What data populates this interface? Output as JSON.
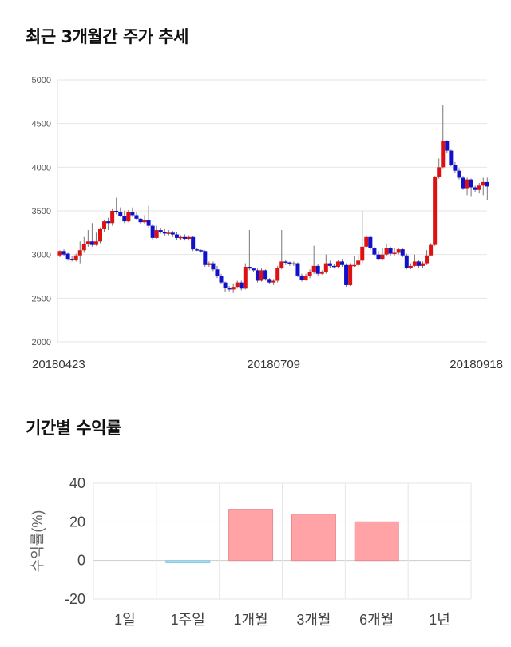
{
  "titles": {
    "price_trend": "최근 3개월간 주가 추세",
    "period_returns": "기간별 수익률"
  },
  "colors": {
    "up": "#dd1111",
    "down": "#1111cc",
    "return_positive": "#ffa3a6",
    "return_negative": "#a9dcf0",
    "grid": "#e6e6e6"
  },
  "chart_data": [
    {
      "type": "candlestick",
      "title": "최근 3개월간 주가 추세",
      "ylim": [
        2000,
        5000
      ],
      "yticks": [
        2000,
        2500,
        3000,
        3500,
        4000,
        4500,
        5000
      ],
      "xticks": [
        {
          "index": 0,
          "label": "20180423"
        },
        {
          "index": 53,
          "label": "20180709"
        },
        {
          "index": 104,
          "label": "20180918"
        }
      ],
      "candles": [
        [
          2990,
          3040,
          2970,
          3050
        ],
        [
          3040,
          3000,
          2980,
          3060
        ],
        [
          3010,
          2950,
          2930,
          3020
        ],
        [
          2950,
          2940,
          2920,
          2980
        ],
        [
          2940,
          2990,
          2920,
          3010
        ],
        [
          2990,
          3050,
          2900,
          3150
        ],
        [
          3050,
          3120,
          3020,
          3200
        ],
        [
          3120,
          3150,
          3090,
          3280
        ],
        [
          3150,
          3110,
          3090,
          3360
        ],
        [
          3110,
          3150,
          3100,
          3250
        ],
        [
          3150,
          3290,
          3130,
          3310
        ],
        [
          3290,
          3380,
          3260,
          3400
        ],
        [
          3380,
          3360,
          3280,
          3420
        ],
        [
          3360,
          3500,
          3330,
          3520
        ],
        [
          3500,
          3490,
          3460,
          3650
        ],
        [
          3490,
          3440,
          3430,
          3540
        ],
        [
          3440,
          3380,
          3360,
          3500
        ],
        [
          3380,
          3490,
          3370,
          3510
        ],
        [
          3490,
          3450,
          3430,
          3540
        ],
        [
          3450,
          3410,
          3390,
          3480
        ],
        [
          3410,
          3370,
          3350,
          3420
        ],
        [
          3370,
          3390,
          3350,
          3450
        ],
        [
          3390,
          3330,
          3300,
          3560
        ],
        [
          3330,
          3190,
          3170,
          3350
        ],
        [
          3190,
          3280,
          3180,
          3330
        ],
        [
          3280,
          3260,
          3240,
          3300
        ],
        [
          3260,
          3240,
          3210,
          3290
        ],
        [
          3240,
          3250,
          3220,
          3280
        ],
        [
          3250,
          3230,
          3200,
          3270
        ],
        [
          3230,
          3190,
          3170,
          3260
        ],
        [
          3190,
          3200,
          3170,
          3220
        ],
        [
          3200,
          3180,
          3160,
          3230
        ],
        [
          3180,
          3200,
          3160,
          3220
        ],
        [
          3200,
          3060,
          3040,
          3210
        ],
        [
          3060,
          3050,
          3040,
          3080
        ],
        [
          3050,
          3040,
          3020,
          3060
        ],
        [
          3040,
          2880,
          2860,
          3050
        ],
        [
          2880,
          2900,
          2860,
          2920
        ],
        [
          2900,
          2830,
          2810,
          2920
        ],
        [
          2830,
          2750,
          2730,
          2870
        ],
        [
          2750,
          2680,
          2660,
          2780
        ],
        [
          2680,
          2620,
          2570,
          2690
        ],
        [
          2620,
          2600,
          2580,
          2640
        ],
        [
          2600,
          2630,
          2560,
          2670
        ],
        [
          2630,
          2680,
          2610,
          2700
        ],
        [
          2680,
          2610,
          2590,
          2700
        ],
        [
          2610,
          2860,
          2600,
          2900
        ],
        [
          2860,
          2840,
          2820,
          3280
        ],
        [
          2840,
          2820,
          2800,
          2850
        ],
        [
          2820,
          2700,
          2680,
          2840
        ],
        [
          2700,
          2820,
          2690,
          2840
        ],
        [
          2820,
          2720,
          2700,
          2830
        ],
        [
          2720,
          2680,
          2660,
          2730
        ],
        [
          2680,
          2700,
          2650,
          2720
        ],
        [
          2700,
          2850,
          2680,
          2870
        ],
        [
          2850,
          2920,
          2830,
          3280
        ],
        [
          2920,
          2910,
          2880,
          2940
        ],
        [
          2910,
          2890,
          2870,
          2920
        ],
        [
          2890,
          2900,
          2870,
          2920
        ],
        [
          2900,
          2760,
          2740,
          2910
        ],
        [
          2760,
          2710,
          2690,
          2780
        ],
        [
          2710,
          2750,
          2700,
          2780
        ],
        [
          2750,
          2800,
          2730,
          2830
        ],
        [
          2800,
          2870,
          2780,
          3100
        ],
        [
          2870,
          2780,
          2760,
          2890
        ],
        [
          2780,
          2800,
          2770,
          2820
        ],
        [
          2800,
          2900,
          2780,
          3000
        ],
        [
          2900,
          2870,
          2850,
          2930
        ],
        [
          2870,
          2860,
          2840,
          2890
        ],
        [
          2860,
          2920,
          2840,
          2940
        ],
        [
          2920,
          2880,
          2860,
          2950
        ],
        [
          2880,
          2650,
          2630,
          2900
        ],
        [
          2650,
          2880,
          2640,
          2900
        ],
        [
          2880,
          2880,
          2860,
          2980
        ],
        [
          2880,
          2930,
          2860,
          3000
        ],
        [
          2930,
          3090,
          2900,
          3500
        ],
        [
          3090,
          3200,
          3080,
          3220
        ],
        [
          3200,
          3070,
          3050,
          3220
        ],
        [
          3070,
          3000,
          2980,
          3090
        ],
        [
          3000,
          2950,
          2930,
          3040
        ],
        [
          2950,
          3000,
          2930,
          3080
        ],
        [
          3000,
          3070,
          2980,
          3120
        ],
        [
          3070,
          3010,
          2990,
          3090
        ],
        [
          3010,
          3020,
          2990,
          3070
        ],
        [
          3020,
          3060,
          3000,
          3080
        ],
        [
          3060,
          2990,
          2970,
          3080
        ],
        [
          2990,
          2850,
          2830,
          3010
        ],
        [
          2850,
          2870,
          2830,
          2900
        ],
        [
          2870,
          2920,
          2860,
          3000
        ],
        [
          2920,
          2870,
          2850,
          2940
        ],
        [
          2870,
          2900,
          2850,
          2920
        ],
        [
          2900,
          2990,
          2880,
          3050
        ],
        [
          2990,
          3110,
          2980,
          3130
        ],
        [
          3110,
          3890,
          3100,
          3900
        ],
        [
          3890,
          4000,
          3870,
          4100
        ],
        [
          4000,
          4300,
          3990,
          4710
        ],
        [
          4300,
          4190,
          4160,
          4310
        ],
        [
          4190,
          4030,
          4010,
          4200
        ],
        [
          4030,
          3960,
          3940,
          4060
        ],
        [
          3960,
          3880,
          3860,
          3990
        ],
        [
          3880,
          3760,
          3740,
          3900
        ],
        [
          3760,
          3860,
          3680,
          3880
        ],
        [
          3860,
          3770,
          3660,
          3870
        ],
        [
          3770,
          3740,
          3720,
          3790
        ],
        [
          3740,
          3790,
          3700,
          3820
        ],
        [
          3790,
          3830,
          3680,
          3880
        ],
        [
          3830,
          3780,
          3620,
          3880
        ]
      ]
    },
    {
      "type": "bar",
      "title": "기간별 수익률",
      "ylabel": "수익률(%)",
      "ylim": [
        -20,
        40
      ],
      "yticks": [
        -20,
        0,
        20,
        40
      ],
      "categories": [
        "1일",
        "1주일",
        "1개월",
        "3개월",
        "6개월",
        "1년"
      ],
      "values": [
        0,
        -1.2,
        26.5,
        24,
        20,
        0
      ]
    }
  ]
}
